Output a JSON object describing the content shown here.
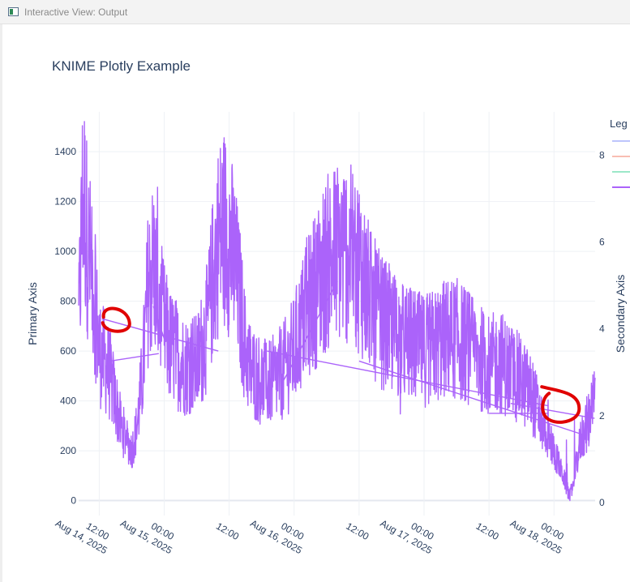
{
  "window": {
    "title": "Interactive View: Output",
    "icon": "knime-view-icon"
  },
  "chart_data": {
    "type": "line",
    "title": "KNIME Plotly Example",
    "ylabel": "Primary Axis",
    "y2label": "Secondary Axis",
    "legend_title": "Leg",
    "legend_position": "right",
    "ylim": [
      -60,
      1560
    ],
    "y2lim": [
      -0.3,
      9.0
    ],
    "yticks": [
      0,
      200,
      400,
      600,
      800,
      1000,
      1200,
      1400
    ],
    "y2ticks": [
      0,
      2,
      4,
      6,
      8
    ],
    "xticks": [
      {
        "line1": "12:00",
        "line2": "Aug 14, 2025",
        "hour": 12
      },
      {
        "line1": "00:00",
        "line2": "Aug 15, 2025",
        "hour": 24
      },
      {
        "line1": "12:00",
        "line2": "",
        "hour": 36
      },
      {
        "line1": "00:00",
        "line2": "Aug 16, 2025",
        "hour": 48
      },
      {
        "line1": "12:00",
        "line2": "",
        "hour": 60
      },
      {
        "line1": "00:00",
        "line2": "Aug 17, 2025",
        "hour": 72
      },
      {
        "line1": "12:00",
        "line2": "",
        "hour": 84
      },
      {
        "line1": "00:00",
        "line2": "Aug 18, 2025",
        "hour": 96
      }
    ],
    "xlim_hours": [
      8.2,
      103.6
    ],
    "series": [
      {
        "color": "#a7b2fb",
        "values": []
      },
      {
        "color": "#f7a99a",
        "values": []
      },
      {
        "color": "#7ce0b7",
        "values": []
      },
      {
        "color": "#ab63fa",
        "hours_values": [
          [
            8.2,
            700
          ],
          [
            9.0,
            1250
          ],
          [
            10.0,
            1000
          ],
          [
            11.0,
            850
          ],
          [
            12.0,
            600
          ],
          [
            13.0,
            560
          ],
          [
            14.0,
            500
          ],
          [
            15.0,
            400
          ],
          [
            16.0,
            300
          ],
          [
            17.0,
            250
          ],
          [
            18.0,
            200
          ],
          [
            19.0,
            300
          ],
          [
            20.0,
            500
          ],
          [
            21.0,
            850
          ],
          [
            22.0,
            950
          ],
          [
            23.0,
            800
          ],
          [
            24.0,
            700
          ],
          [
            25.0,
            620
          ],
          [
            26.0,
            600
          ],
          [
            27.0,
            560
          ],
          [
            28.0,
            540
          ],
          [
            29.0,
            560
          ],
          [
            30.0,
            540
          ],
          [
            31.0,
            620
          ],
          [
            32.0,
            700
          ],
          [
            33.0,
            900
          ],
          [
            34.0,
            1050
          ],
          [
            35.0,
            1100
          ],
          [
            36.0,
            1050
          ],
          [
            37.0,
            950
          ],
          [
            38.0,
            800
          ],
          [
            39.0,
            600
          ],
          [
            40.0,
            520
          ],
          [
            41.0,
            500
          ],
          [
            42.0,
            480
          ],
          [
            43.0,
            470
          ],
          [
            44.0,
            480
          ],
          [
            45.0,
            500
          ],
          [
            46.0,
            520
          ],
          [
            47.0,
            560
          ],
          [
            48.0,
            600
          ],
          [
            50.0,
            750
          ],
          [
            52.0,
            850
          ],
          [
            54.0,
            950
          ],
          [
            56.0,
            1000
          ],
          [
            58.0,
            1000
          ],
          [
            60.0,
            950
          ],
          [
            62.0,
            800
          ],
          [
            64.0,
            720
          ],
          [
            66.0,
            680
          ],
          [
            68.0,
            640
          ],
          [
            70.0,
            620
          ],
          [
            72.0,
            600
          ],
          [
            74.0,
            620
          ],
          [
            76.0,
            650
          ],
          [
            78.0,
            650
          ],
          [
            80.0,
            620
          ],
          [
            82.0,
            580
          ],
          [
            84.0,
            540
          ],
          [
            86.0,
            560
          ],
          [
            88.0,
            520
          ],
          [
            90.0,
            480
          ],
          [
            92.0,
            420
          ],
          [
            94.0,
            300
          ],
          [
            96.0,
            200
          ],
          [
            98.0,
            80
          ],
          [
            99.0,
            10
          ],
          [
            101.0,
            250
          ],
          [
            103.0,
            350
          ],
          [
            103.6,
            420
          ]
        ]
      }
    ],
    "annotations": [
      {
        "kind": "freehand-circle",
        "color": "#e00000",
        "near_hour": 14,
        "near_value": 720
      },
      {
        "kind": "freehand-circle",
        "color": "#e00000",
        "near_hour": 96,
        "near_value": 385
      }
    ]
  }
}
